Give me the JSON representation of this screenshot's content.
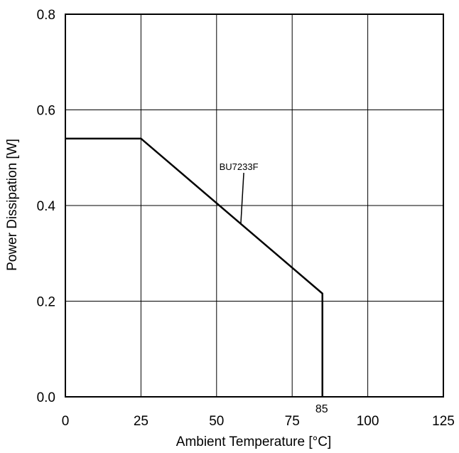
{
  "chart_data": {
    "type": "line",
    "title": "",
    "xlabel": "Ambient Temperature [°C]",
    "ylabel": "Power Dissipation [W]",
    "xlim": [
      0,
      125
    ],
    "ylim": [
      0,
      0.8
    ],
    "x_ticks": [
      0,
      25,
      50,
      75,
      100,
      125
    ],
    "y_ticks": [
      0,
      0.2,
      0.4,
      0.6,
      0.8
    ],
    "x_tick_labels": [
      "0",
      "25",
      "50",
      "75",
      "100",
      "125"
    ],
    "y_tick_labels": [
      "0.0",
      "0.2",
      "0.4",
      "0.6",
      "0.8"
    ],
    "grid": true,
    "series": [
      {
        "name": "BU7233F",
        "x": [
          0,
          25,
          85,
          85
        ],
        "y": [
          0.54,
          0.54,
          0.216,
          0
        ]
      }
    ],
    "annotations": [
      {
        "text": "BU7233F",
        "x": 55,
        "y": 0.44,
        "points_to": [
          58,
          0.36
        ]
      },
      {
        "text": "85",
        "x": 85,
        "y": 0
      }
    ]
  }
}
